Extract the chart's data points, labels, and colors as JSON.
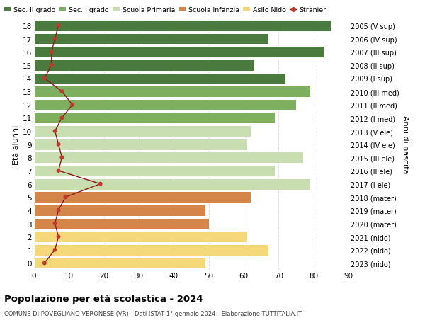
{
  "ages": [
    18,
    17,
    16,
    15,
    14,
    13,
    12,
    11,
    10,
    9,
    8,
    7,
    6,
    5,
    4,
    3,
    2,
    1,
    0
  ],
  "anni_nascita": [
    "2005 (V sup)",
    "2006 (IV sup)",
    "2007 (III sup)",
    "2008 (II sup)",
    "2009 (I sup)",
    "2010 (III med)",
    "2011 (II med)",
    "2012 (I med)",
    "2013 (V ele)",
    "2014 (IV ele)",
    "2015 (III ele)",
    "2016 (II ele)",
    "2017 (I ele)",
    "2018 (mater)",
    "2019 (mater)",
    "2020 (mater)",
    "2021 (nido)",
    "2022 (nido)",
    "2023 (nido)"
  ],
  "bar_values": [
    85,
    67,
    83,
    63,
    72,
    79,
    75,
    69,
    62,
    61,
    77,
    69,
    79,
    62,
    49,
    50,
    61,
    67,
    49
  ],
  "bar_colors": [
    "#4a7a3d",
    "#4a7a3d",
    "#4a7a3d",
    "#4a7a3d",
    "#4a7a3d",
    "#7daf5e",
    "#7daf5e",
    "#7daf5e",
    "#c8deb0",
    "#c8deb0",
    "#c8deb0",
    "#c8deb0",
    "#c8deb0",
    "#d4854a",
    "#d4854a",
    "#d4854a",
    "#f5d87a",
    "#f5d87a",
    "#f5d87a"
  ],
  "stranieri_x": [
    7,
    6,
    5,
    5,
    3,
    8,
    11,
    8,
    6,
    7,
    8,
    7,
    19,
    9,
    7,
    6,
    7,
    6,
    3
  ],
  "legend_labels": [
    "Sec. II grado",
    "Sec. I grado",
    "Scuola Primaria",
    "Scuola Infanzia",
    "Asilo Nido",
    "Stranieri"
  ],
  "legend_colors": [
    "#4a7a3d",
    "#7daf5e",
    "#c8deb0",
    "#d4854a",
    "#f5d87a",
    "#c0392b"
  ],
  "title": "Popolazione per età scolastica - 2024",
  "subtitle": "COMUNE DI POVEGLIANO VERONESE (VR) - Dati ISTAT 1° gennaio 2024 - Elaborazione TUTTITALIA.IT",
  "ylabel_left": "Età alunni",
  "ylabel_right": "Anni di nascita",
  "xlim": [
    0,
    90
  ],
  "bg_color": "#ffffff",
  "plot_bg_color": "#ffffff",
  "grid_color": "#e0e0e0"
}
